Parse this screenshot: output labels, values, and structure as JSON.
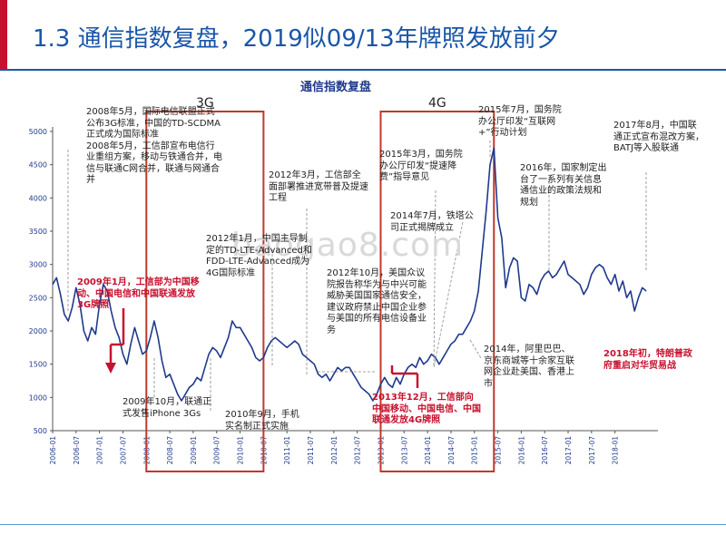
{
  "slide": {
    "title": "1.3 通信指数复盘，2019似09/13年牌照发放前夕",
    "accent_color": "#c8102e",
    "brand_color": "#1a56a8",
    "watermark": "baogao8.com"
  },
  "chart_data": {
    "type": "line",
    "title": "通信指数复盘",
    "xlabel": "",
    "ylabel": "",
    "ylim": [
      500,
      5000
    ],
    "yticks": [
      500,
      1000,
      1500,
      2000,
      2500,
      3000,
      3500,
      4000,
      4500,
      5000
    ],
    "xlim": [
      "2006-01",
      "2018-12"
    ],
    "xticks": [
      "2006-01",
      "2006-07",
      "2007-01",
      "2007-07",
      "2008-01",
      "2008-07",
      "2009-01",
      "2009-07",
      "2010-01",
      "2010-07",
      "2011-01",
      "2011-07",
      "2012-01",
      "2012-07",
      "2013-01",
      "2013-07",
      "2014-01",
      "2014-07",
      "2015-01",
      "2015-07",
      "2016-01",
      "2016-07",
      "2017-01",
      "2017-07",
      "2018-01"
    ],
    "line_color": "#1f3a8c",
    "series": [
      {
        "name": "",
        "points": [
          [
            "2006-01",
            2700
          ],
          [
            "2006-02",
            2800
          ],
          [
            "2006-03",
            2550
          ],
          [
            "2006-04",
            2250
          ],
          [
            "2006-05",
            2150
          ],
          [
            "2006-06",
            2350
          ],
          [
            "2006-07",
            2650
          ],
          [
            "2006-08",
            2400
          ],
          [
            "2006-09",
            2000
          ],
          [
            "2006-10",
            1850
          ],
          [
            "2006-11",
            2050
          ],
          [
            "2006-12",
            1950
          ],
          [
            "2007-01",
            2400
          ],
          [
            "2007-02",
            2700
          ],
          [
            "2007-03",
            2600
          ],
          [
            "2007-04",
            2300
          ],
          [
            "2007-05",
            2050
          ],
          [
            "2007-06",
            1900
          ],
          [
            "2007-07",
            1650
          ],
          [
            "2007-08",
            1500
          ],
          [
            "2007-09",
            1800
          ],
          [
            "2007-10",
            2050
          ],
          [
            "2007-11",
            1850
          ],
          [
            "2007-12",
            1650
          ],
          [
            "2008-01",
            1700
          ],
          [
            "2008-02",
            1900
          ],
          [
            "2008-03",
            2150
          ],
          [
            "2008-04",
            1900
          ],
          [
            "2008-05",
            1550
          ],
          [
            "2008-06",
            1300
          ],
          [
            "2008-07",
            1350
          ],
          [
            "2008-08",
            1200
          ],
          [
            "2008-09",
            1050
          ],
          [
            "2008-10",
            950
          ],
          [
            "2008-11",
            1050
          ],
          [
            "2008-12",
            1150
          ],
          [
            "2009-01",
            1200
          ],
          [
            "2009-02",
            1300
          ],
          [
            "2009-03",
            1250
          ],
          [
            "2009-04",
            1450
          ],
          [
            "2009-05",
            1650
          ],
          [
            "2009-06",
            1750
          ],
          [
            "2009-07",
            1700
          ],
          [
            "2009-08",
            1600
          ],
          [
            "2009-09",
            1750
          ],
          [
            "2009-10",
            1900
          ],
          [
            "2009-11",
            2150
          ],
          [
            "2009-12",
            2050
          ],
          [
            "2010-01",
            2050
          ],
          [
            "2010-02",
            1950
          ],
          [
            "2010-03",
            1850
          ],
          [
            "2010-04",
            1750
          ],
          [
            "2010-05",
            1600
          ],
          [
            "2010-06",
            1550
          ],
          [
            "2010-07",
            1600
          ],
          [
            "2010-08",
            1750
          ],
          [
            "2010-09",
            1850
          ],
          [
            "2010-10",
            1900
          ],
          [
            "2010-11",
            1850
          ],
          [
            "2010-12",
            1800
          ],
          [
            "2011-01",
            1750
          ],
          [
            "2011-02",
            1800
          ],
          [
            "2011-03",
            1850
          ],
          [
            "2011-04",
            1800
          ],
          [
            "2011-05",
            1650
          ],
          [
            "2011-06",
            1600
          ],
          [
            "2011-07",
            1550
          ],
          [
            "2011-08",
            1500
          ],
          [
            "2011-09",
            1350
          ],
          [
            "2011-10",
            1300
          ],
          [
            "2011-11",
            1350
          ],
          [
            "2011-12",
            1250
          ],
          [
            "2012-01",
            1350
          ],
          [
            "2012-02",
            1450
          ],
          [
            "2012-03",
            1400
          ],
          [
            "2012-04",
            1450
          ],
          [
            "2012-05",
            1450
          ],
          [
            "2012-06",
            1350
          ],
          [
            "2012-07",
            1250
          ],
          [
            "2012-08",
            1150
          ],
          [
            "2012-09",
            1100
          ],
          [
            "2012-10",
            1050
          ],
          [
            "2012-11",
            950
          ],
          [
            "2012-12",
            1050
          ],
          [
            "2013-01",
            1200
          ],
          [
            "2013-02",
            1300
          ],
          [
            "2013-03",
            1200
          ],
          [
            "2013-04",
            1150
          ],
          [
            "2013-05",
            1300
          ],
          [
            "2013-06",
            1200
          ],
          [
            "2013-07",
            1350
          ],
          [
            "2013-08",
            1450
          ],
          [
            "2013-09",
            1500
          ],
          [
            "2013-10",
            1450
          ],
          [
            "2013-11",
            1600
          ],
          [
            "2013-12",
            1500
          ],
          [
            "2014-01",
            1550
          ],
          [
            "2014-02",
            1650
          ],
          [
            "2014-03",
            1600
          ],
          [
            "2014-04",
            1500
          ],
          [
            "2014-05",
            1600
          ],
          [
            "2014-06",
            1700
          ],
          [
            "2014-07",
            1800
          ],
          [
            "2014-08",
            1850
          ],
          [
            "2014-09",
            1950
          ],
          [
            "2014-10",
            1950
          ],
          [
            "2014-11",
            2050
          ],
          [
            "2014-12",
            2150
          ],
          [
            "2015-01",
            2300
          ],
          [
            "2015-02",
            2600
          ],
          [
            "2015-03",
            3200
          ],
          [
            "2015-04",
            3800
          ],
          [
            "2015-05",
            4500
          ],
          [
            "2015-06",
            4750
          ],
          [
            "2015-07",
            3700
          ],
          [
            "2015-08",
            3400
          ],
          [
            "2015-09",
            2650
          ],
          [
            "2015-10",
            2950
          ],
          [
            "2015-11",
            3100
          ],
          [
            "2015-12",
            3050
          ],
          [
            "2016-01",
            2500
          ],
          [
            "2016-02",
            2450
          ],
          [
            "2016-03",
            2700
          ],
          [
            "2016-04",
            2650
          ],
          [
            "2016-05",
            2550
          ],
          [
            "2016-06",
            2750
          ],
          [
            "2016-07",
            2850
          ],
          [
            "2016-08",
            2900
          ],
          [
            "2016-09",
            2800
          ],
          [
            "2016-10",
            2850
          ],
          [
            "2016-11",
            2950
          ],
          [
            "2016-12",
            3050
          ],
          [
            "2017-01",
            2850
          ],
          [
            "2017-02",
            2800
          ],
          [
            "2017-03",
            2750
          ],
          [
            "2017-04",
            2700
          ],
          [
            "2017-05",
            2550
          ],
          [
            "2017-06",
            2650
          ],
          [
            "2017-07",
            2850
          ],
          [
            "2017-08",
            2950
          ],
          [
            "2017-09",
            3000
          ],
          [
            "2017-10",
            2950
          ],
          [
            "2017-11",
            2800
          ],
          [
            "2017-12",
            2700
          ],
          [
            "2018-01",
            2850
          ],
          [
            "2018-02",
            2600
          ],
          [
            "2018-03",
            2750
          ],
          [
            "2018-04",
            2500
          ],
          [
            "2018-05",
            2600
          ],
          [
            "2018-06",
            2300
          ],
          [
            "2018-07",
            2500
          ],
          [
            "2018-08",
            2650
          ],
          [
            "2018-09",
            2600
          ]
        ]
      }
    ],
    "highlight_boxes": [
      {
        "label": "3G",
        "from": "2008-01",
        "to": "2010-07",
        "color": "#c0392b"
      },
      {
        "label": "4G",
        "from": "2013-01",
        "to": "2015-06",
        "color": "#c0392b"
      }
    ],
    "annotations": [
      {
        "id": "a2008",
        "text": "2008年5月，国际电信联盟正式公布3G标准，中国的TD-SCDMA正式成为国际标准\n2008年5月，工信部宣布电信行业重组方案，移动与铁通合并，电信与联通C网合并，联通与网通合并",
        "red": false
      },
      {
        "id": "a2009jan",
        "text": "2009年1月，工信部为中国移动、中国电信和中国联通发放3G牌照",
        "red": true
      },
      {
        "id": "a2009oct",
        "text": "2009年10月，联通正式发售iPhone 3Gs",
        "red": false
      },
      {
        "id": "a2010sep",
        "text": "2010年9月，手机实名制正式实施",
        "red": false
      },
      {
        "id": "a2012jan",
        "text": "2012年1月，中国主导制定的TD-LTE-Advanced和FDD-LTE-Advanced成为4G国际标准",
        "red": false
      },
      {
        "id": "a2012mar",
        "text": "2012年3月，工信部全面部署推进宽带普及提速工程",
        "red": false
      },
      {
        "id": "a2012oct",
        "text": "2012年10月，美国众议院报告称华为与中兴可能威胁美国国家通信安全，建议政府禁止中国企业参与美国的所有电信设备业务",
        "red": false
      },
      {
        "id": "a2013dec",
        "text": "2013年12月，工信部向中国移动、中国电信、中国联通发放4G牌照",
        "red": true
      },
      {
        "id": "a2015mar",
        "text": "2015年3月，国务院办公厅印发“提速降费”指导意见",
        "red": false
      },
      {
        "id": "a2014jul",
        "text": "2014年7月，铁塔公司正式揭牌成立",
        "red": false
      },
      {
        "id": "a2015jul",
        "text": "2015年7月，国务院办公厅印发“互联网+”行动计划",
        "red": false
      },
      {
        "id": "a2016",
        "text": "2016年，国家制定出台了一系列有关信息通信业的政策法规和规划",
        "red": false
      },
      {
        "id": "a2014",
        "text": "2014年，阿里巴巴、京东商城等十余家互联网企业赴美国、香港上市",
        "red": false
      },
      {
        "id": "a2017aug",
        "text": "2017年8月，中国联通正式宣布混改方案，BATJ等入股联通",
        "red": false
      },
      {
        "id": "a2018",
        "text": "2018年初，特朗普政府重启对华贸易战",
        "red": true
      }
    ]
  }
}
